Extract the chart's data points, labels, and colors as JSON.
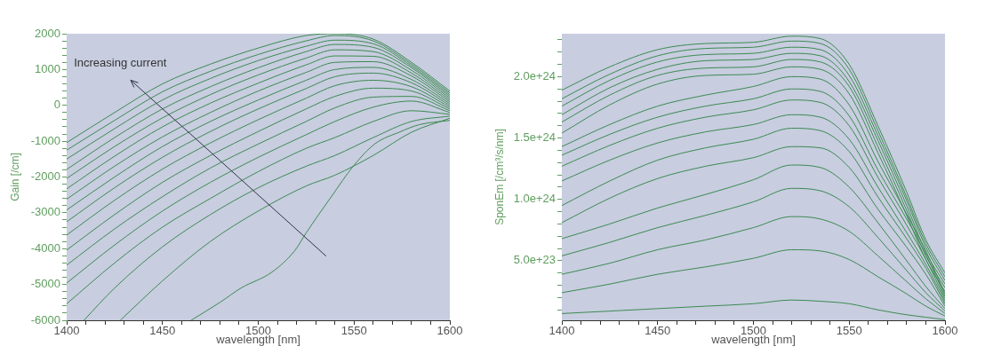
{
  "chart_data": [
    {
      "type": "line",
      "xlabel": "wavelength [nm]",
      "ylabel": "Gain [/cm]",
      "annotations": [
        "Increasing current"
      ],
      "xlim": [
        1400,
        1600
      ],
      "ylim": [
        -6000,
        2000
      ],
      "xticks": [
        1400,
        {
          "value": 1410,
          "label": null
        },
        {
          "value": 1420,
          "label": null
        },
        {
          "value": 1430,
          "label": null
        },
        {
          "value": 1440,
          "label": null
        },
        1450,
        {
          "value": 1460,
          "label": null
        },
        {
          "value": 1470,
          "label": null
        },
        {
          "value": 1480,
          "label": null
        },
        {
          "value": 1490,
          "label": null
        },
        1500,
        {
          "value": 1510,
          "label": null
        },
        {
          "value": 1520,
          "label": null
        },
        {
          "value": 1530,
          "label": null
        },
        {
          "value": 1540,
          "label": null
        },
        1550,
        {
          "value": 1560,
          "label": null
        },
        {
          "value": 1570,
          "label": null
        },
        {
          "value": 1580,
          "label": null
        },
        {
          "value": 1590,
          "label": null
        },
        1600
      ],
      "yticks": [
        -6000,
        {
          "value": -5800,
          "label": null
        },
        {
          "value": -5600,
          "label": null
        },
        {
          "value": -5400,
          "label": null
        },
        {
          "value": -5200,
          "label": null
        },
        -5000,
        {
          "value": -4800,
          "label": null
        },
        {
          "value": -4600,
          "label": null
        },
        {
          "value": -4400,
          "label": null
        },
        {
          "value": -4200,
          "label": null
        },
        -4000,
        {
          "value": -3800,
          "label": null
        },
        {
          "value": -3600,
          "label": null
        },
        {
          "value": -3400,
          "label": null
        },
        {
          "value": -3200,
          "label": null
        },
        -3000,
        {
          "value": -2800,
          "label": null
        },
        {
          "value": -2600,
          "label": null
        },
        {
          "value": -2400,
          "label": null
        },
        {
          "value": -2200,
          "label": null
        },
        -2000,
        {
          "value": -1800,
          "label": null
        },
        {
          "value": -1600,
          "label": null
        },
        {
          "value": -1400,
          "label": null
        },
        {
          "value": -1200,
          "label": null
        },
        -1000,
        {
          "value": -800,
          "label": null
        },
        {
          "value": -600,
          "label": null
        },
        {
          "value": -400,
          "label": null
        },
        {
          "value": -200,
          "label": null
        },
        0,
        {
          "value": 200,
          "label": null
        },
        {
          "value": 400,
          "label": null
        },
        {
          "value": 600,
          "label": null
        },
        {
          "value": 800,
          "label": null
        },
        1000,
        {
          "value": 1200,
          "label": null
        },
        {
          "value": 1400,
          "label": null
        },
        {
          "value": 1600,
          "label": null
        },
        {
          "value": 1800,
          "label": null
        },
        2000
      ],
      "x": [
        1400,
        1425,
        1450,
        1475,
        1500,
        1525,
        1540,
        1560,
        1580,
        1600
      ],
      "color": "#3c8a50",
      "series": [
        {
          "values": [
            -1040,
            -200,
            600,
            1150,
            1600,
            1950,
            2000,
            1850,
            1200,
            400
          ]
        },
        {
          "values": [
            -1250,
            -420,
            380,
            950,
            1420,
            1800,
            1950,
            1800,
            1150,
            350
          ]
        },
        {
          "values": [
            -1500,
            -650,
            150,
            750,
            1250,
            1650,
            1820,
            1720,
            1100,
            300
          ]
        },
        {
          "values": [
            -1790,
            -900,
            -100,
            520,
            1050,
            1500,
            1700,
            1620,
            1050,
            250
          ]
        },
        {
          "values": [
            -2040,
            -1150,
            -350,
            300,
            850,
            1320,
            1550,
            1500,
            980,
            200
          ]
        },
        {
          "values": [
            -2330,
            -1420,
            -600,
            60,
            620,
            1130,
            1380,
            1370,
            900,
            150
          ]
        },
        {
          "values": [
            -2620,
            -1700,
            -880,
            -200,
            400,
            920,
            1200,
            1220,
            820,
            100
          ]
        },
        {
          "values": [
            -2920,
            -2000,
            -1150,
            -450,
            150,
            700,
            1000,
            1060,
            720,
            50
          ]
        },
        {
          "values": [
            -3250,
            -2300,
            -1450,
            -730,
            -100,
            470,
            800,
            900,
            630,
            0
          ]
        },
        {
          "values": [
            -3620,
            -2650,
            -1780,
            -1050,
            -400,
            200,
            550,
            700,
            520,
            -50
          ]
        },
        {
          "values": [
            -4040,
            -3050,
            -2150,
            -1400,
            -730,
            -100,
            250,
            480,
            400,
            -100
          ]
        },
        {
          "values": [
            -4460,
            -3450,
            -2550,
            -1750,
            -1080,
            -450,
            -70,
            230,
            250,
            -150
          ]
        },
        {
          "values": [
            -4960,
            -3900,
            -2950,
            -2150,
            -1450,
            -820,
            -450,
            -50,
            120,
            -200
          ]
        },
        {
          "values": [
            -5540,
            -4400,
            -3400,
            -2600,
            -1850,
            -1200,
            -900,
            -450,
            -150,
            -250
          ]
        },
        {
          "x": [
            1409,
            1425,
            1450,
            1475,
            1500,
            1525,
            1540,
            1560,
            1580,
            1600
          ],
          "values": [
            -6000,
            -5100,
            -3950,
            -3050,
            -2300,
            -1700,
            -1400,
            -900,
            -450,
            -300
          ]
        },
        {
          "x": [
            1428,
            1450,
            1475,
            1500,
            1525,
            1540,
            1560,
            1580,
            1600
          ],
          "values": [
            -6000,
            -4900,
            -3800,
            -2950,
            -2250,
            -1950,
            -1400,
            -750,
            -360
          ]
        },
        {
          "x": [
            1465,
            1480,
            1491,
            1507,
            1519,
            1525,
            1538,
            1550,
            1561,
            1574,
            1584,
            1600
          ],
          "values": [
            -6000,
            -5500,
            -5100,
            -4660,
            -4060,
            -3560,
            -2560,
            -1670,
            -1070,
            -740,
            -540,
            -420
          ]
        }
      ]
    },
    {
      "type": "line",
      "xlabel": "wavelength [nm]",
      "ylabel": "SponEm [/cm³/s/nm]",
      "xlim": [
        1400,
        1600
      ],
      "ylim": [
        1.5e+22,
        2.35e+24
      ],
      "xticks": [
        1400,
        {
          "value": 1410,
          "label": null
        },
        {
          "value": 1420,
          "label": null
        },
        {
          "value": 1430,
          "label": null
        },
        {
          "value": 1440,
          "label": null
        },
        1450,
        {
          "value": 1460,
          "label": null
        },
        {
          "value": 1470,
          "label": null
        },
        {
          "value": 1480,
          "label": null
        },
        {
          "value": 1490,
          "label": null
        },
        1500,
        {
          "value": 1510,
          "label": null
        },
        {
          "value": 1520,
          "label": null
        },
        {
          "value": 1530,
          "label": null
        },
        {
          "value": 1540,
          "label": null
        },
        1550,
        {
          "value": 1560,
          "label": null
        },
        {
          "value": 1570,
          "label": null
        },
        {
          "value": 1580,
          "label": null
        },
        {
          "value": 1590,
          "label": null
        },
        1600
      ],
      "yticks": [
        {
          "value": 1e+23,
          "label": null
        },
        {
          "value": 2e+23,
          "label": null
        },
        {
          "value": 3e+23,
          "label": null
        },
        {
          "value": 4e+23,
          "label": null
        },
        {
          "value": 5e+23,
          "label": "5.0e+23"
        },
        {
          "value": 6e+23,
          "label": null
        },
        {
          "value": 7e+23,
          "label": null
        },
        {
          "value": 8e+23,
          "label": null
        },
        {
          "value": 9e+23,
          "label": null
        },
        {
          "value": 1e+24,
          "label": "1.0e+24"
        },
        {
          "value": 1.1e+24,
          "label": null
        },
        {
          "value": 1.2e+24,
          "label": null
        },
        {
          "value": 1.3e+24,
          "label": null
        },
        {
          "value": 1.4e+24,
          "label": null
        },
        {
          "value": 1.5e+24,
          "label": "1.5e+24"
        },
        {
          "value": 1.6e+24,
          "label": null
        },
        {
          "value": 1.7e+24,
          "label": null
        },
        {
          "value": 1.8e+24,
          "label": null
        },
        {
          "value": 1.9e+24,
          "label": null
        },
        {
          "value": 2e+24,
          "label": "2.0e+24"
        },
        {
          "value": 2.1e+24,
          "label": null
        },
        {
          "value": 2.2e+24,
          "label": null
        },
        {
          "value": 2.3e+24,
          "label": null
        }
      ],
      "x": [
        1400,
        1425,
        1450,
        1475,
        1500,
        1520,
        1535,
        1550,
        1565,
        1580,
        1590,
        1600
      ],
      "color": "#3c8a50",
      "series": [
        {
          "values": [
            1.89e+24,
            2.08e+24,
            2.22e+24,
            2.27e+24,
            2.28e+24,
            2.33e+24,
            2.31e+24,
            2.1e+24,
            1.6e+24,
            1.06e+24,
            6.7e+23,
            4e+23
          ]
        },
        {
          "values": [
            1.82e+24,
            2.02e+24,
            2.17e+24,
            2.23e+24,
            2.24e+24,
            2.29e+24,
            2.27e+24,
            2.06e+24,
            1.56e+24,
            1.02e+24,
            6.4e+23,
            3.7e+23
          ]
        },
        {
          "values": [
            1.76e+24,
            1.97e+24,
            2.12e+24,
            2.18e+24,
            2.19e+24,
            2.24e+24,
            2.22e+24,
            2.01e+24,
            1.52e+24,
            9.9e+23,
            6.1e+23,
            3.4e+23
          ]
        },
        {
          "values": [
            1.69e+24,
            1.91e+24,
            2.06e+24,
            2.13e+24,
            2.14e+24,
            2.19e+24,
            2.17e+24,
            1.96e+24,
            1.48e+24,
            9.5e+23,
            5.7e+23,
            3.1e+23
          ]
        },
        {
          "values": [
            1.63e+24,
            1.85e+24,
            2.01e+24,
            2.07e+24,
            2.08e+24,
            2.14e+24,
            2.12e+24,
            1.92e+24,
            1.43e+24,
            9.1e+23,
            5.4e+23,
            2.8e+23
          ]
        },
        {
          "values": [
            1.54e+24,
            1.77e+24,
            1.94e+24,
            2.01e+24,
            2.02e+24,
            2.08e+24,
            2.06e+24,
            1.86e+24,
            1.38e+24,
            8.7e+23,
            5.1e+23,
            2.5e+23
          ]
        },
        {
          "values": [
            1.43e+24,
            1.61e+24,
            1.76e+24,
            1.85e+24,
            1.92e+24,
            2e+24,
            1.98e+24,
            1.77e+24,
            1.31e+24,
            8.8e+23,
            5.8e+23,
            2.3e+23
          ]
        },
        {
          "values": [
            1.36e+24,
            1.53e+24,
            1.67e+24,
            1.76e+24,
            1.82e+24,
            1.9e+24,
            1.88e+24,
            1.68e+24,
            1.24e+24,
            8.4e+23,
            5.5e+23,
            2.1e+23
          ]
        },
        {
          "values": [
            1.27e+24,
            1.44e+24,
            1.58e+24,
            1.67e+24,
            1.73e+24,
            1.81e+24,
            1.79e+24,
            1.6e+24,
            1.18e+24,
            7.9e+23,
            5.1e+23,
            1.9e+23
          ]
        },
        {
          "values": [
            1.15e+24,
            1.32e+24,
            1.46e+24,
            1.55e+24,
            1.61e+24,
            1.69e+24,
            1.67e+24,
            1.49e+24,
            1.1e+24,
            7.3e+23,
            4.7e+23,
            1.7e+23
          ]
        },
        {
          "values": [
            9.5e+23,
            1.15e+24,
            1.32e+24,
            1.42e+24,
            1.49e+24,
            1.58e+24,
            1.56e+24,
            1.39e+24,
            1.02e+24,
            6.8e+23,
            4.4e+23,
            1.5e+23
          ]
        },
        {
          "values": [
            8.1e+23,
            1.01e+24,
            1.17e+24,
            1.27e+24,
            1.34e+24,
            1.43e+24,
            1.42e+24,
            1.26e+24,
            9.2e+23,
            6.1e+23,
            3.9e+23,
            1.3e+23
          ]
        },
        {
          "values": [
            6.8e+23,
            8e+23,
            9.3e+23,
            1.04e+24,
            1.16e+24,
            1.28e+24,
            1.26e+24,
            1.1e+24,
            8.1e+23,
            5e+23,
            2.9e+23,
            1.1e+23
          ]
        },
        {
          "values": [
            5.4e+23,
            6.5e+23,
            7.7e+23,
            8.7e+23,
            9.8e+23,
            1.09e+24,
            1.07e+24,
            9.4e+23,
            6.9e+23,
            4.2e+23,
            2.4e+23,
            9e+22
          ]
        },
        {
          "values": [
            3.9e+23,
            4.8e+23,
            5.9e+23,
            6.7e+23,
            7.7e+23,
            8.6e+23,
            8.4e+23,
            7.4e+23,
            5.4e+23,
            3.3e+23,
            1.9e+23,
            7e+22
          ]
        },
        {
          "values": [
            2.4e+23,
            3.1e+23,
            3.9e+23,
            4.5e+23,
            5.2e+23,
            5.9e+23,
            5.8e+23,
            5.1e+23,
            3.7e+23,
            2.3e+23,
            1.3e+23,
            5e+22
          ]
        },
        {
          "values": [
            7e+22,
            9e+22,
            1.1e+23,
            1.3e+23,
            1.5e+23,
            1.8e+23,
            1.7e+23,
            1.5e+23,
            1e+23,
            6e+22,
            4e+22,
            2e+22
          ]
        }
      ]
    }
  ]
}
